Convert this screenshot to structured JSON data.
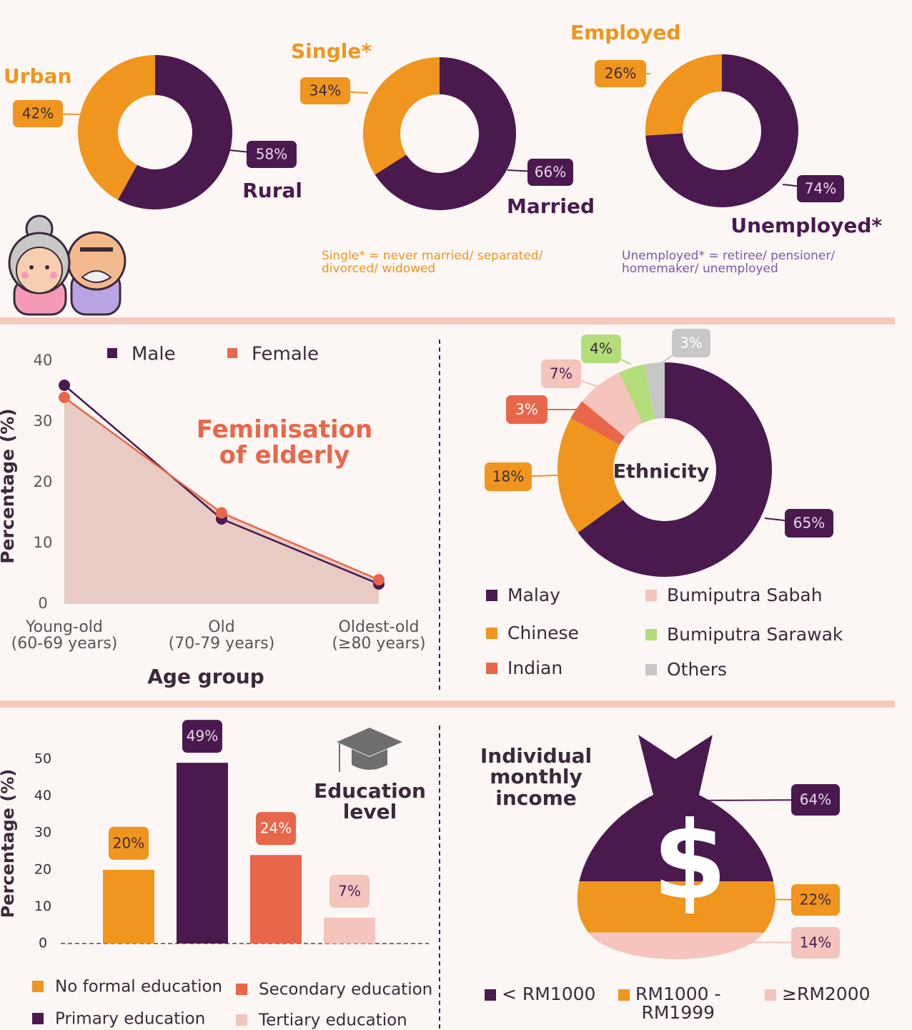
{
  "chart_data": [
    {
      "type": "donut",
      "categories": [
        "Urban",
        "Rural"
      ],
      "values": [
        42,
        58
      ],
      "value_labels": [
        "42%",
        "58%"
      ],
      "colors": [
        "#f0951e",
        "#4a1a4f"
      ]
    },
    {
      "type": "donut",
      "categories": [
        "Single*",
        "Married"
      ],
      "values": [
        34,
        66
      ],
      "value_labels": [
        "34%",
        "66%"
      ],
      "colors": [
        "#f0951e",
        "#4a1a4f"
      ],
      "note": "Single* = never married/ separated/\ndivorced/ widowed"
    },
    {
      "type": "donut",
      "categories": [
        "Employed",
        "Unemployed*"
      ],
      "values": [
        26,
        74
      ],
      "value_labels": [
        "26%",
        "74%"
      ],
      "colors": [
        "#f0951e",
        "#4a1a4f"
      ],
      "note": "Unemployed* = retiree/ pensioner/\nhomemaker/ unemployed"
    },
    {
      "type": "line",
      "title": "Feminisation\nof elderly",
      "x_label": "Age group",
      "y_label": "Percentage (%)",
      "categories": [
        "Young-old\n(60-69 years)",
        "Old\n(70-79 years)",
        "Oldest-old\n(≥80 years)"
      ],
      "series": [
        {
          "name": "Male",
          "color": "#4a1a4f",
          "values": [
            36,
            14,
            3.3
          ]
        },
        {
          "name": "Female",
          "color": "#e8674a",
          "values": [
            34,
            15,
            4
          ]
        }
      ],
      "ylim": [
        0,
        40
      ],
      "yticks": [
        0,
        10,
        20,
        30,
        40
      ]
    },
    {
      "type": "donut",
      "title": "Ethnicity",
      "categories": [
        "Malay",
        "Chinese",
        "Indian",
        "Bumiputra Sabah",
        "Bumiputra Sarawak",
        "Others"
      ],
      "values": [
        65,
        18,
        3,
        7,
        4,
        3
      ],
      "value_labels": [
        "65%",
        "18%",
        "3%",
        "7%",
        "4%",
        "3%"
      ],
      "colors": [
        "#4a1a4f",
        "#f0951e",
        "#e8674a",
        "#f4c4bd",
        "#b3dd7a",
        "#c7c7c7"
      ]
    },
    {
      "type": "bar",
      "title": "Education\nlevel",
      "y_label": "Percentage (%)",
      "categories": [
        "No formal education",
        "Primary education",
        "Secondary education",
        "Tertiary education"
      ],
      "values": [
        20,
        49,
        24,
        7
      ],
      "value_labels": [
        "20%",
        "49%",
        "24%",
        "7%"
      ],
      "colors": [
        "#f0951e",
        "#4a1a4f",
        "#e8674a",
        "#f4c4bd"
      ],
      "ylim": [
        0,
        50
      ],
      "yticks": [
        0,
        10,
        20,
        30,
        40,
        50
      ]
    },
    {
      "type": "pictorial",
      "title": "Individual\nmonthly\nincome",
      "categories": [
        "< RM1000",
        "RM1000 -\nRM1999",
        "≥RM2000"
      ],
      "values": [
        64,
        22,
        14
      ],
      "value_labels": [
        "64%",
        "22%",
        "14%"
      ],
      "colors": [
        "#4a1a4f",
        "#f0951e",
        "#f4c4bd"
      ]
    }
  ]
}
